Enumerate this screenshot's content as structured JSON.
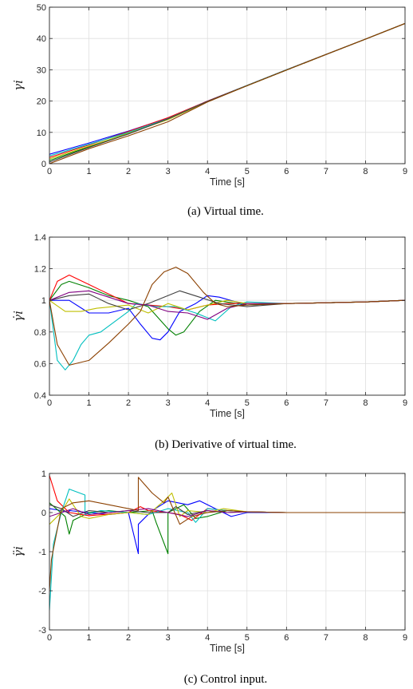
{
  "chart_data": [
    {
      "type": "line",
      "caption": "(a) Virtual time.",
      "xlabel": "Time [s]",
      "ylabel": "γi",
      "xlim": [
        0,
        9
      ],
      "ylim": [
        0,
        50
      ],
      "xticks": [
        0,
        1,
        2,
        3,
        4,
        5,
        6,
        7,
        8,
        9
      ],
      "yticks": [
        0,
        10,
        20,
        30,
        40,
        50
      ],
      "grid": true,
      "series": [
        {
          "color": "#0000ff",
          "x": [
            0,
            1,
            2,
            3,
            4,
            5,
            6,
            7,
            8,
            9
          ],
          "y": [
            3.0,
            6.6,
            10.4,
            14.6,
            20.0,
            25.0,
            30.0,
            34.9,
            39.8,
            44.8
          ]
        },
        {
          "color": "#008000",
          "x": [
            0,
            1,
            2,
            3,
            4,
            5,
            6,
            7,
            8,
            9
          ],
          "y": [
            1.0,
            5.4,
            9.8,
            14.1,
            19.8,
            24.9,
            29.9,
            34.9,
            39.8,
            44.8
          ]
        },
        {
          "color": "#ff0000",
          "x": [
            0,
            1,
            2,
            3,
            4,
            5,
            6,
            7,
            8,
            9
          ],
          "y": [
            2.0,
            6.0,
            10.3,
            14.7,
            20.0,
            25.0,
            30.0,
            34.9,
            39.8,
            44.8
          ]
        },
        {
          "color": "#00bfbf",
          "x": [
            0,
            1,
            2,
            3,
            4,
            5,
            6,
            7,
            8,
            9
          ],
          "y": [
            2.5,
            6.2,
            10.0,
            14.4,
            19.9,
            25.0,
            30.0,
            34.9,
            39.8,
            44.8
          ]
        },
        {
          "color": "#bfbf00",
          "x": [
            0,
            1,
            2,
            3,
            4,
            5,
            6,
            7,
            8,
            9
          ],
          "y": [
            1.5,
            5.6,
            9.7,
            14.1,
            19.8,
            24.9,
            29.9,
            34.9,
            39.8,
            44.8
          ]
        },
        {
          "color": "#404040",
          "x": [
            0,
            1,
            2,
            3,
            4,
            5,
            6,
            7,
            8,
            9
          ],
          "y": [
            0.5,
            5.2,
            9.5,
            14.3,
            19.9,
            24.9,
            29.9,
            34.9,
            39.8,
            44.8
          ]
        },
        {
          "color": "#8b4000",
          "x": [
            0,
            1,
            2,
            3,
            4,
            5,
            6,
            7,
            8,
            9
          ],
          "y": [
            0.0,
            4.8,
            8.9,
            13.4,
            19.7,
            24.9,
            29.9,
            34.9,
            39.8,
            44.8
          ]
        }
      ]
    },
    {
      "type": "line",
      "caption": "(b) Derivative of virtual time.",
      "xlabel": "Time [s]",
      "ylabel": "γ̇i",
      "xlim": [
        0,
        9
      ],
      "ylim": [
        0.4,
        1.4
      ],
      "xticks": [
        0,
        1,
        2,
        3,
        4,
        5,
        6,
        7,
        8,
        9
      ],
      "yticks": [
        0.4,
        0.6,
        0.8,
        1,
        1.2,
        1.4
      ],
      "grid": true,
      "series": [
        {
          "color": "#0000ff",
          "x": [
            0,
            0.5,
            1,
            1.5,
            2,
            2.3,
            2.6,
            2.8,
            3.0,
            3.3,
            3.7,
            4.0,
            4.3,
            5,
            6,
            7,
            8,
            9
          ],
          "y": [
            1.0,
            1.0,
            0.92,
            0.92,
            0.95,
            0.85,
            0.76,
            0.75,
            0.8,
            0.93,
            0.98,
            1.03,
            1.02,
            0.97,
            0.98,
            0.985,
            0.99,
            1.0
          ]
        },
        {
          "color": "#008000",
          "x": [
            0,
            0.3,
            0.5,
            1,
            1.5,
            2,
            2.5,
            3.0,
            3.2,
            3.4,
            3.8,
            4.2,
            5,
            6,
            7,
            8,
            9
          ],
          "y": [
            1.0,
            1.1,
            1.12,
            1.08,
            1.03,
            1.0,
            0.96,
            0.82,
            0.78,
            0.8,
            0.93,
            1.0,
            0.97,
            0.98,
            0.985,
            0.99,
            1.0
          ]
        },
        {
          "color": "#ff0000",
          "x": [
            0,
            0.2,
            0.5,
            1,
            1.5,
            2,
            2.5,
            3,
            3.5,
            4,
            4.5,
            5,
            6,
            7,
            8,
            9
          ],
          "y": [
            1.0,
            1.12,
            1.16,
            1.1,
            1.04,
            0.98,
            0.97,
            0.96,
            0.94,
            0.97,
            0.98,
            0.98,
            0.98,
            0.985,
            0.99,
            1.0
          ]
        },
        {
          "color": "#00bfbf",
          "x": [
            0,
            0.2,
            0.4,
            0.6,
            0.8,
            1.0,
            1.3,
            2.0,
            2.2,
            2.7,
            3.2,
            3.7,
            4.2,
            4.6,
            5,
            6,
            7,
            8,
            9
          ],
          "y": [
            1.0,
            0.62,
            0.56,
            0.62,
            0.72,
            0.78,
            0.8,
            0.93,
            0.98,
            0.96,
            0.96,
            0.92,
            0.87,
            0.96,
            0.99,
            0.98,
            0.985,
            0.99,
            1.0
          ]
        },
        {
          "color": "#bfbf00",
          "x": [
            0,
            0.4,
            0.8,
            1.2,
            2,
            2.5,
            3,
            3.5,
            4,
            4.5,
            5,
            6,
            7,
            8,
            9
          ],
          "y": [
            1.0,
            0.93,
            0.93,
            0.95,
            0.97,
            0.92,
            0.98,
            0.94,
            0.97,
            1.0,
            0.98,
            0.98,
            0.985,
            0.99,
            1.0
          ]
        },
        {
          "color": "#404040",
          "x": [
            0,
            0.5,
            1,
            1.5,
            2,
            2.5,
            3,
            3.3,
            3.8,
            4.3,
            5,
            6,
            7,
            8,
            9
          ],
          "y": [
            1.0,
            1.03,
            1.04,
            0.98,
            0.94,
            0.98,
            1.03,
            1.06,
            1.02,
            0.98,
            0.96,
            0.98,
            0.985,
            0.99,
            1.0
          ]
        },
        {
          "color": "#800080",
          "x": [
            0,
            0.5,
            1,
            1.5,
            2,
            2.5,
            3,
            3.5,
            4,
            4.5,
            5,
            6,
            7,
            8,
            9
          ],
          "y": [
            1.0,
            1.05,
            1.06,
            1.02,
            0.98,
            0.97,
            0.93,
            0.92,
            0.88,
            0.95,
            0.98,
            0.98,
            0.985,
            0.99,
            1.0
          ]
        },
        {
          "color": "#8b4000",
          "x": [
            0,
            0.2,
            0.5,
            1,
            1.5,
            2,
            2.3,
            2.6,
            2.9,
            3.2,
            3.5,
            3.9,
            4.2,
            4.5,
            5,
            6,
            7,
            8,
            9
          ],
          "y": [
            1.0,
            0.72,
            0.59,
            0.62,
            0.73,
            0.85,
            0.93,
            1.1,
            1.18,
            1.21,
            1.17,
            1.05,
            0.98,
            0.96,
            0.97,
            0.98,
            0.985,
            0.99,
            1.0
          ]
        }
      ]
    },
    {
      "type": "line",
      "caption": "(c) Control input.",
      "xlabel": "Time [s]",
      "ylabel": "γ̈i",
      "xlim": [
        0,
        9
      ],
      "ylim": [
        -3,
        1
      ],
      "xticks": [
        0,
        1,
        2,
        3,
        4,
        5,
        6,
        7,
        8,
        9
      ],
      "yticks": [
        -3,
        -2,
        -1,
        0,
        1
      ],
      "grid": true,
      "series": [
        {
          "color": "#0000ff",
          "x": [
            0,
            0.3,
            0.5,
            0.5,
            1,
            1.5,
            2,
            2.25,
            2.25,
            2.6,
            3,
            3.5,
            3.8,
            4.2,
            4.6,
            5,
            6,
            7,
            8,
            9
          ],
          "y": [
            0.1,
            0.05,
            0.0,
            0.05,
            0.0,
            -0.05,
            0.0,
            -1.05,
            -0.3,
            0.05,
            0.3,
            0.2,
            0.3,
            0.1,
            -0.1,
            0.0,
            0.0,
            0.0,
            0.0,
            0.0
          ]
        },
        {
          "color": "#008000",
          "x": [
            0,
            0.4,
            0.5,
            0.6,
            1.0,
            1.5,
            2.0,
            2.6,
            2.7,
            3.0,
            3.0,
            3.4,
            3.7,
            4.0,
            4.5,
            5,
            6,
            7,
            8,
            9
          ],
          "y": [
            0.25,
            -0.1,
            -0.55,
            -0.2,
            0.0,
            0.05,
            0.0,
            0.05,
            -0.25,
            -1.05,
            0.0,
            0.2,
            -0.15,
            -0.1,
            0.05,
            0.02,
            0.0,
            0.0,
            0.0,
            0.0
          ]
        },
        {
          "color": "#ff0000",
          "x": [
            0,
            0.2,
            0.5,
            1.0,
            2.0,
            2.3,
            2.5,
            3.0,
            3.3,
            3.6,
            4.0,
            4.5,
            5,
            6,
            7,
            8,
            9
          ],
          "y": [
            0.95,
            0.3,
            0.0,
            -0.08,
            0.0,
            0.15,
            0.05,
            0.0,
            -0.05,
            -0.2,
            0.1,
            0.05,
            0.02,
            0.0,
            0.0,
            0.0,
            0.0
          ]
        },
        {
          "color": "#00bfbf",
          "x": [
            0,
            0.1,
            0.3,
            0.5,
            0.9,
            0.9,
            1.3,
            2.0,
            2.5,
            3.0,
            3.5,
            3.7,
            4.0,
            4.5,
            5,
            6,
            7,
            8,
            9
          ],
          "y": [
            -2.5,
            -0.8,
            0.0,
            0.6,
            0.45,
            -0.05,
            0.05,
            0.0,
            -0.05,
            0.1,
            0.0,
            -0.25,
            0.1,
            0.05,
            0.02,
            0.0,
            0.0,
            0.0,
            0.0
          ]
        },
        {
          "color": "#bfbf00",
          "x": [
            0,
            0.3,
            0.5,
            0.8,
            1.0,
            1.5,
            2.0,
            2.5,
            2.9,
            3.1,
            3.3,
            3.5,
            4.0,
            4.4,
            5,
            6,
            7,
            8,
            9
          ],
          "y": [
            -0.3,
            0.0,
            0.35,
            -0.1,
            -0.15,
            -0.05,
            0.0,
            -0.05,
            0.3,
            0.5,
            -0.1,
            0.05,
            0.0,
            0.1,
            0.02,
            0.0,
            0.0,
            0.0,
            0.0
          ]
        },
        {
          "color": "#404040",
          "x": [
            0,
            0.3,
            0.6,
            1.0,
            1.5,
            2.0,
            2.5,
            3.0,
            3.2,
            3.5,
            4.0,
            4.5,
            5,
            6,
            7,
            8,
            9
          ],
          "y": [
            0.2,
            0.1,
            -0.1,
            0.05,
            0.0,
            0.05,
            0.0,
            0.0,
            0.15,
            -0.05,
            0.05,
            0.0,
            0.02,
            0.0,
            0.0,
            0.0,
            0.0
          ]
        },
        {
          "color": "#800080",
          "x": [
            0,
            0.3,
            0.6,
            1.0,
            1.5,
            2.0,
            2.5,
            3.0,
            3.5,
            4.0,
            4.5,
            5,
            6,
            7,
            8,
            9
          ],
          "y": [
            -0.1,
            0.0,
            0.1,
            -0.05,
            0.0,
            0.05,
            0.1,
            0.0,
            -0.1,
            0.05,
            0.0,
            0.02,
            0.0,
            0.0,
            0.0,
            0.0
          ]
        },
        {
          "color": "#8b4000",
          "x": [
            0,
            0.05,
            0.3,
            0.6,
            1.0,
            1.5,
            2.0,
            2.25,
            2.25,
            2.6,
            2.9,
            3.0,
            3.3,
            3.6,
            4.0,
            4.5,
            5,
            6,
            7,
            8,
            9
          ],
          "y": [
            -2.0,
            -1.2,
            0.1,
            0.25,
            0.3,
            0.2,
            0.1,
            0.05,
            0.9,
            0.5,
            0.25,
            0.4,
            -0.3,
            -0.1,
            0.0,
            0.05,
            0.02,
            0.0,
            0.0,
            0.0,
            0.0
          ]
        }
      ]
    }
  ]
}
